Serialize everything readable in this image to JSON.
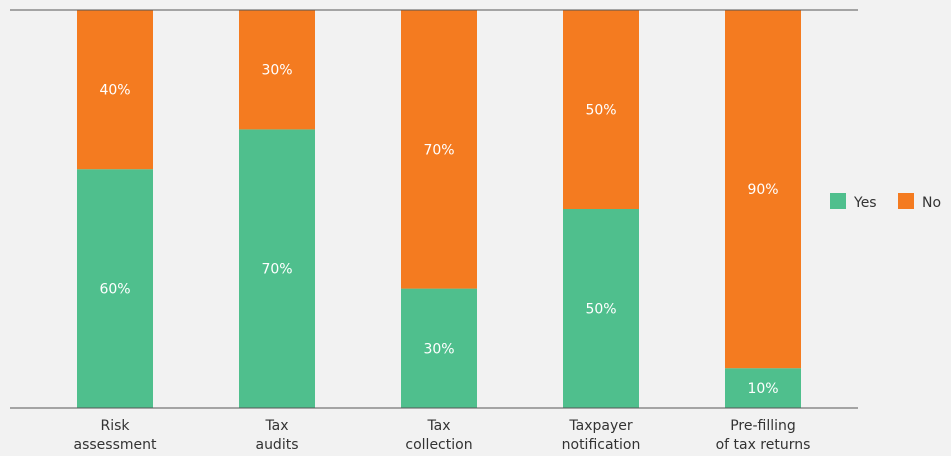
{
  "chart_data": {
    "type": "bar",
    "stacked": true,
    "percent_scale": true,
    "categories": [
      "Risk assessment",
      "Tax audits",
      "Tax collection",
      "Taxpayer notification",
      "Pre-filling of tax returns"
    ],
    "category_lines": [
      [
        "Risk",
        "assessment"
      ],
      [
        "Tax",
        "audits"
      ],
      [
        "Tax",
        "collection"
      ],
      [
        "Taxpayer",
        "notification"
      ],
      [
        "Pre-filling",
        "of tax returns"
      ]
    ],
    "series": [
      {
        "name": "Yes",
        "color": "#4fbf8d",
        "values": [
          60,
          70,
          30,
          50,
          10
        ],
        "labels": [
          "60%",
          "70%",
          "30%",
          "50%",
          "10%"
        ]
      },
      {
        "name": "No",
        "color": "#f47b20",
        "values": [
          40,
          30,
          70,
          50,
          90
        ],
        "labels": [
          "40%",
          "30%",
          "70%",
          "50%",
          "90%"
        ]
      }
    ],
    "ylim": [
      0,
      100
    ],
    "grid": false,
    "legend_position": "right"
  }
}
